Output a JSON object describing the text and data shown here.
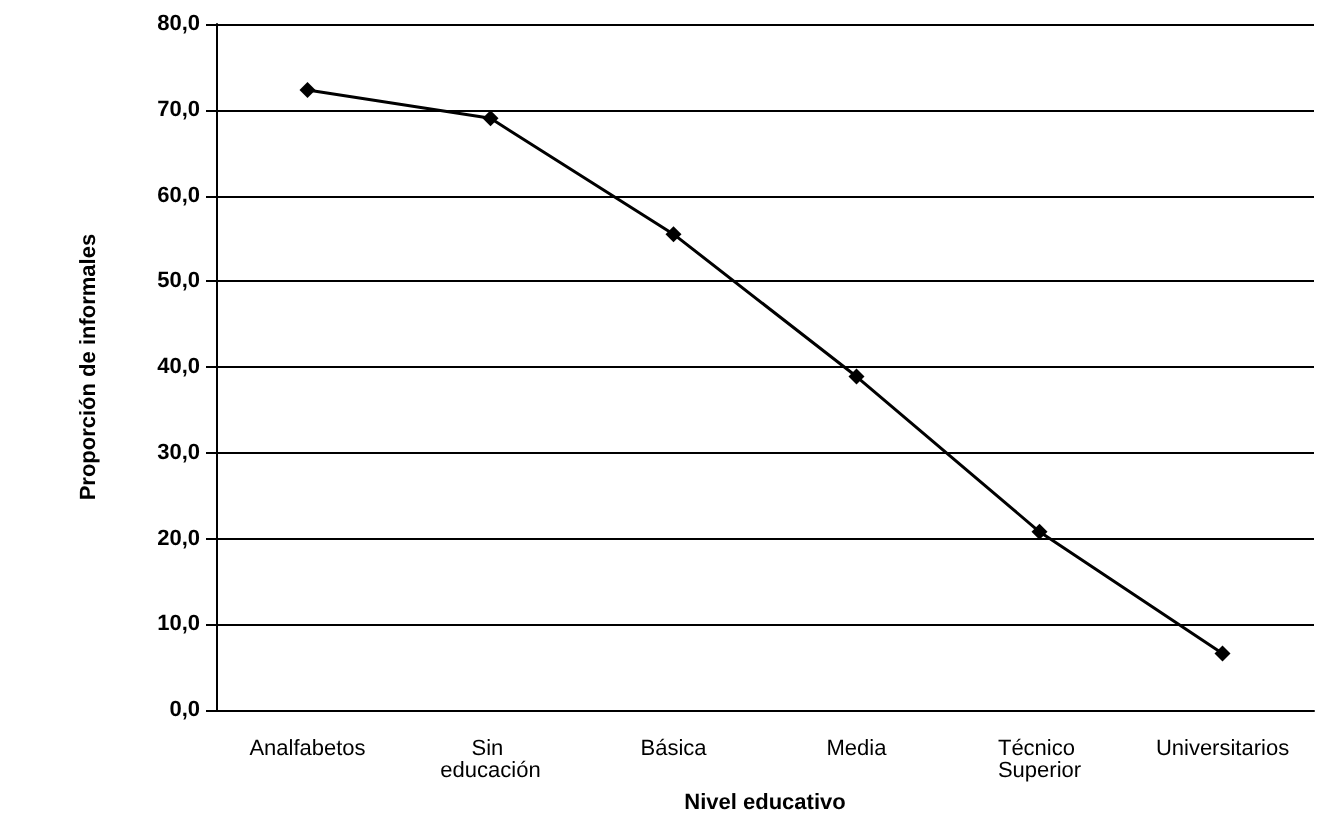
{
  "chart_data": {
    "type": "line",
    "xlabel": "Nivel educativo",
    "ylabel": "Proporción de informales",
    "categories": [
      "Analfabetos",
      "Sin educación",
      "Básica",
      "Media",
      "Técnico Superior",
      "Universitarios"
    ],
    "series": [
      {
        "color": "#000000",
        "values": [
          72.3,
          69.0,
          55.5,
          38.9,
          20.8,
          6.6
        ]
      }
    ],
    "ylim": [
      0,
      80
    ],
    "yticks": [
      {
        "value": 0,
        "label": "0,0"
      },
      {
        "value": 10,
        "label": "10,0"
      },
      {
        "value": 20,
        "label": "20,0"
      },
      {
        "value": 30,
        "label": "30,0"
      },
      {
        "value": 40,
        "label": "40,0"
      },
      {
        "value": 50,
        "label": "50,0"
      },
      {
        "value": 60,
        "label": "60,0"
      },
      {
        "value": 70,
        "label": "70,0"
      },
      {
        "value": 80,
        "label": "80,0"
      }
    ],
    "grid": "y",
    "marker": "diamond",
    "line_style": "solid"
  }
}
